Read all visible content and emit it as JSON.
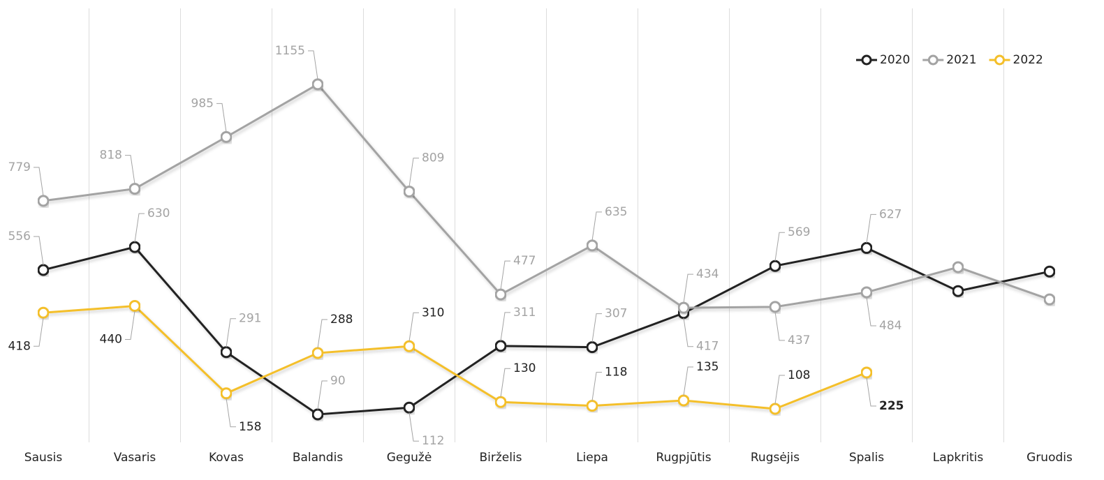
{
  "chart_data": {
    "type": "line",
    "categories": [
      "Sausis",
      "Vasaris",
      "Kovas",
      "Balandis",
      "Gegužė",
      "Birželis",
      "Liepa",
      "Rugpjūtis",
      "Rugsėjis",
      "Spalis",
      "Lapkritis",
      "Gruodis"
    ],
    "series": [
      {
        "name": "2020",
        "color": "#222222",
        "label_color": "#a3a3a3",
        "values": [
          556,
          630,
          291,
          90,
          112,
          311,
          307,
          417,
          569,
          627,
          488,
          551
        ],
        "value_labels": [
          "556",
          "630",
          "291",
          "90",
          "112",
          "311",
          "307",
          "417",
          "569",
          "627",
          null,
          null
        ]
      },
      {
        "name": "2021",
        "color": "#a3a3a3",
        "label_color": "#a3a3a3",
        "values": [
          779,
          818,
          985,
          1155,
          809,
          477,
          635,
          434,
          437,
          484,
          565,
          461
        ],
        "value_labels": [
          "779",
          "818",
          "985",
          "1155",
          "809",
          "477",
          "635",
          "434",
          "437",
          "484",
          null,
          null
        ]
      },
      {
        "name": "2022",
        "color": "#f4bf2a",
        "label_color": "#222222",
        "values": [
          418,
          440,
          158,
          288,
          310,
          130,
          118,
          135,
          108,
          225,
          null,
          null
        ],
        "value_labels": [
          "418",
          "440",
          "158",
          "288",
          "310",
          "130",
          "118",
          "135",
          "108",
          "225",
          null,
          null
        ]
      }
    ],
    "ylim": [
      0,
      1400
    ],
    "legend": "top-right",
    "grid": "vertical"
  }
}
